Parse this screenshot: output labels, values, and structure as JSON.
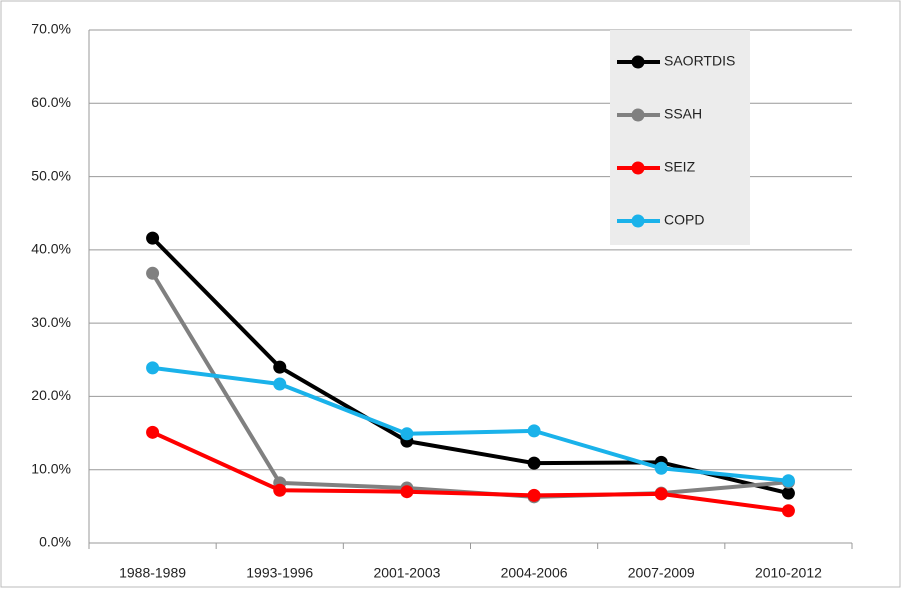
{
  "chart_data": {
    "type": "line",
    "categories": [
      "1988-1989",
      "1993-1996",
      "2001-2003",
      "2004-2006",
      "2007-2009",
      "2010-2012"
    ],
    "series": [
      {
        "name": "SAORTDIS",
        "color": "#000000",
        "values": [
          41.6,
          24.0,
          13.9,
          10.9,
          11.0,
          6.8
        ]
      },
      {
        "name": "SSAH",
        "color": "#808080",
        "values": [
          36.8,
          8.2,
          7.5,
          6.3,
          6.8,
          8.3
        ]
      },
      {
        "name": "SEIZ",
        "color": "#ff0000",
        "values": [
          15.1,
          7.2,
          7.0,
          6.5,
          6.7,
          4.4
        ]
      },
      {
        "name": "COPD",
        "color": "#1ab2ea",
        "values": [
          23.9,
          21.7,
          14.9,
          15.3,
          10.2,
          8.5
        ]
      }
    ],
    "ylim": [
      0,
      70
    ],
    "yticks": [
      {
        "value": 0,
        "label": "0.0%"
      },
      {
        "value": 10,
        "label": "10.0%"
      },
      {
        "value": 20,
        "label": "20.0%"
      },
      {
        "value": 30,
        "label": "30.0%"
      },
      {
        "value": 40,
        "label": "40.0%"
      },
      {
        "value": 50,
        "label": "50.0%"
      },
      {
        "value": 60,
        "label": "60.0%"
      },
      {
        "value": 70,
        "label": "70.0%"
      }
    ],
    "grid": true,
    "legend": "upper-right"
  }
}
